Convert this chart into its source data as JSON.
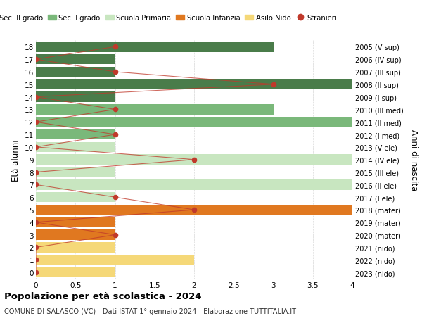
{
  "ages": [
    18,
    17,
    16,
    15,
    14,
    13,
    12,
    11,
    10,
    9,
    8,
    7,
    6,
    5,
    4,
    3,
    2,
    1,
    0
  ],
  "right_labels": [
    "2005 (V sup)",
    "2006 (IV sup)",
    "2007 (III sup)",
    "2008 (II sup)",
    "2009 (I sup)",
    "2010 (III med)",
    "2011 (II med)",
    "2012 (I med)",
    "2013 (V ele)",
    "2014 (IV ele)",
    "2015 (III ele)",
    "2016 (II ele)",
    "2017 (I ele)",
    "2018 (mater)",
    "2019 (mater)",
    "2020 (mater)",
    "2021 (nido)",
    "2022 (nido)",
    "2023 (nido)"
  ],
  "bar_values": [
    3,
    1,
    1,
    4,
    1,
    3,
    4,
    1,
    1,
    4,
    1,
    4,
    1,
    4,
    1,
    1,
    1,
    2,
    1
  ],
  "bar_colors": [
    "#4a7c4a",
    "#4a7c4a",
    "#4a7c4a",
    "#4a7c4a",
    "#4a7c4a",
    "#7ab87a",
    "#7ab87a",
    "#7ab87a",
    "#c8e6c0",
    "#c8e6c0",
    "#c8e6c0",
    "#c8e6c0",
    "#c8e6c0",
    "#e07820",
    "#e07820",
    "#e07820",
    "#f5d878",
    "#f5d878",
    "#f5d878"
  ],
  "stranieri_values": [
    1,
    0,
    1,
    3,
    0,
    1,
    0,
    1,
    0,
    2,
    0,
    0,
    1,
    2,
    0,
    1,
    0,
    0,
    0
  ],
  "legend_labels": [
    "Sec. II grado",
    "Sec. I grado",
    "Scuola Primaria",
    "Scuola Infanzia",
    "Asilo Nido",
    "Stranieri"
  ],
  "legend_colors": [
    "#4a7c4a",
    "#7ab87a",
    "#c8e6c0",
    "#e07820",
    "#f5d878",
    "#c0392b"
  ],
  "ylabel_left": "Età alunni",
  "ylabel_right": "Anni di nascita",
  "title": "Popolazione per età scolastica - 2024",
  "subtitle": "COMUNE DI SALASCO (VC) - Dati ISTAT 1° gennaio 2024 - Elaborazione TUTTITALIA.IT",
  "xlim": [
    0,
    4.0
  ],
  "xticks": [
    0,
    0.5,
    1.0,
    1.5,
    2.0,
    2.5,
    3.0,
    3.5,
    4.0
  ],
  "bar_height": 0.82,
  "stranieri_color": "#c0392b",
  "line_color": "#c0392b",
  "bg_color": "#ffffff",
  "grid_color": "#d8d8d8"
}
